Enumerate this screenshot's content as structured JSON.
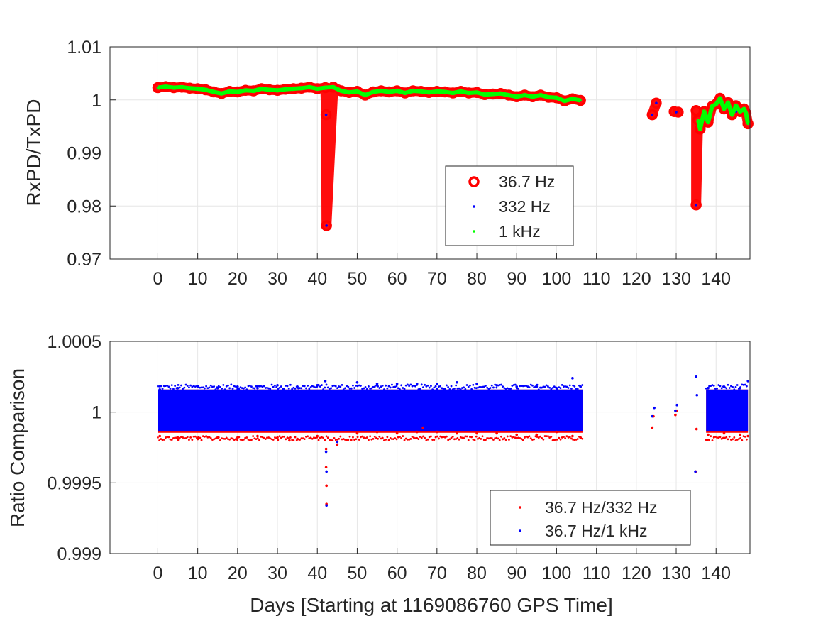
{
  "chart_data": [
    {
      "type": "scatter",
      "ylabel": "RxPD/TxPD",
      "xlabel": "",
      "xlim": [
        -12,
        148.5
      ],
      "ylim": [
        0.97,
        1.01
      ],
      "xticks": [
        "0",
        "10",
        "20",
        "30",
        "40",
        "50",
        "60",
        "70",
        "80",
        "90",
        "100",
        "110",
        "120",
        "130",
        "140"
      ],
      "yticks": [
        "0.97",
        "0.98",
        "0.99",
        "1",
        "1.01"
      ],
      "grid": true,
      "legend_position": "lower-center",
      "series": [
        {
          "name": "36.7 Hz",
          "marker": "open-circle",
          "color": "#ff0000",
          "x": [
            0,
            2,
            4,
            6,
            8,
            10,
            12,
            14,
            16,
            18,
            20,
            22,
            24,
            26,
            28,
            30,
            32,
            34,
            36,
            38,
            40,
            42,
            42.2,
            42.3,
            44,
            46,
            48,
            50,
            52,
            54,
            56,
            58,
            60,
            62,
            64,
            66,
            68,
            70,
            72,
            74,
            76,
            78,
            80,
            82,
            84,
            86,
            88,
            90,
            92,
            94,
            96,
            98,
            100,
            102,
            104,
            106,
            124,
            125,
            129.5,
            130.5,
            135,
            135,
            135.5,
            136,
            137,
            138,
            139,
            140,
            141,
            142,
            143,
            144,
            145,
            146,
            147,
            147.5,
            148
          ],
          "y": [
            1.0023,
            1.0025,
            1.0023,
            1.0024,
            1.0022,
            1.0021,
            1.0019,
            1.0015,
            1.0012,
            1.0016,
            1.0015,
            1.0018,
            1.0017,
            1.0021,
            1.0019,
            1.0018,
            1.002,
            1.0021,
            1.0022,
            1.0024,
            1.0021,
            1.0023,
            0.9972,
            0.9763,
            1.0024,
            1.0017,
            1.0014,
            1.0016,
            1.0009,
            1.0015,
            1.0017,
            1.0015,
            1.0017,
            1.0013,
            1.0017,
            1.0016,
            1.0014,
            1.0016,
            1.0015,
            1.0013,
            1.0016,
            1.0013,
            1.0014,
            1.001,
            1.0011,
            1.0012,
            1.0009,
            1.0006,
            1.0009,
            1.0006,
            1.0009,
            1.0005,
            1.0004,
            0.9998,
            1.0002,
            0.9999,
            0.9972,
            0.9994,
            0.9978,
            0.9977,
            0.998,
            0.9802,
            0.9962,
            0.9945,
            0.9978,
            0.9958,
            0.9988,
            0.9992,
            1.0003,
            0.9983,
            0.9995,
            0.9972,
            0.9989,
            0.9978,
            0.9983,
            0.9975,
            0.9955
          ]
        },
        {
          "name": "332 Hz",
          "marker": "dot",
          "color": "#0000ff",
          "x": [
            0,
            10,
            20,
            30,
            40,
            42.2,
            42.3,
            50,
            60,
            70,
            80,
            90,
            100,
            106,
            124,
            125,
            130,
            135,
            140,
            145,
            147.5
          ],
          "y": [
            1.0023,
            1.0021,
            1.0015,
            1.0018,
            1.0021,
            0.9972,
            0.9763,
            1.0016,
            1.0017,
            1.0016,
            1.0014,
            1.0006,
            1.0004,
            0.9999,
            0.9972,
            0.9994,
            0.9977,
            0.9802,
            0.9992,
            0.9978,
            0.9975
          ]
        },
        {
          "name": "1 kHz",
          "marker": "dot",
          "color": "#00ff00",
          "x": [
            0,
            2,
            4,
            6,
            8,
            10,
            12,
            14,
            16,
            18,
            20,
            22,
            24,
            26,
            28,
            30,
            32,
            34,
            36,
            38,
            40,
            42,
            44,
            46,
            48,
            50,
            52,
            54,
            56,
            58,
            60,
            62,
            64,
            66,
            68,
            70,
            72,
            74,
            76,
            78,
            80,
            82,
            84,
            86,
            88,
            90,
            92,
            94,
            96,
            98,
            100,
            102,
            104,
            106,
            135.5,
            136,
            137,
            138,
            139,
            140,
            141,
            142,
            143,
            144,
            145,
            146,
            147,
            147.5,
            148
          ],
          "y": [
            1.0023,
            1.0025,
            1.0023,
            1.0024,
            1.0022,
            1.0021,
            1.0019,
            1.0015,
            1.0012,
            1.0016,
            1.0015,
            1.0018,
            1.0017,
            1.0021,
            1.0019,
            1.0018,
            1.002,
            1.0021,
            1.0022,
            1.0024,
            1.0021,
            1.0023,
            1.0024,
            1.0017,
            1.0014,
            1.0016,
            1.0009,
            1.0015,
            1.0017,
            1.0015,
            1.0017,
            1.0013,
            1.0017,
            1.0016,
            1.0014,
            1.0016,
            1.0015,
            1.0013,
            1.0016,
            1.0013,
            1.0014,
            1.001,
            1.0011,
            1.0012,
            1.0009,
            1.0006,
            1.0009,
            1.0006,
            1.0009,
            1.0005,
            1.0004,
            0.9998,
            1.0002,
            0.9999,
            0.9962,
            0.9945,
            0.9978,
            0.9958,
            0.9988,
            0.9992,
            1.0003,
            0.9983,
            0.9995,
            0.9972,
            0.9989,
            0.9978,
            0.9983,
            0.9975,
            0.9955
          ]
        }
      ]
    },
    {
      "type": "scatter",
      "ylabel": "Ratio Comparison",
      "xlabel": "Days [Starting at 1169086760 GPS Time]",
      "xlim": [
        -12,
        148.5
      ],
      "ylim": [
        0.999,
        1.0005
      ],
      "xticks": [
        "0",
        "10",
        "20",
        "30",
        "40",
        "50",
        "60",
        "70",
        "80",
        "90",
        "100",
        "110",
        "120",
        "130",
        "140"
      ],
      "yticks": [
        "0.999",
        "0.9995",
        "1",
        "1.0005"
      ],
      "grid": true,
      "legend_position": "lower-right",
      "band": {
        "segments": [
          [
            0,
            106.5
          ],
          [
            137.5,
            148
          ]
        ],
        "min": 0.99982,
        "max": 1.00016
      },
      "series": [
        {
          "name": "36.7 Hz/332 Hz",
          "marker": "dot",
          "color": "#ff0000",
          "x": [
            0.5,
            5,
            10,
            15,
            20,
            25,
            30,
            33,
            35,
            40,
            42.2,
            42.2,
            42.3,
            42.3,
            45,
            50,
            55,
            60,
            65,
            66.5,
            70,
            75,
            80,
            85,
            90,
            95,
            100,
            104,
            106,
            124,
            124.3,
            129.8,
            130.2,
            134.9,
            135.1,
            138,
            142,
            146,
            148
          ],
          "y": [
            0.99983,
            0.99982,
            0.99981,
            0.99982,
            0.99982,
            0.99983,
            0.99982,
            0.9998,
            0.99981,
            0.99983,
            0.99974,
            0.99961,
            0.99948,
            0.99935,
            0.99977,
            0.99985,
            0.99986,
            0.99985,
            0.99986,
            0.99989,
            0.99986,
            0.99985,
            0.99985,
            0.99985,
            0.99984,
            0.99984,
            0.99986,
            0.99983,
            0.99982,
            0.99989,
            0.99997,
            0.99998,
            1.00001,
            0.99958,
            0.99988,
            0.99984,
            0.99985,
            0.99984,
            0.99983
          ]
        },
        {
          "name": "36.7 Hz/1 kHz",
          "marker": "dot",
          "color": "#0000ff",
          "x": [
            0.5,
            5,
            10,
            15,
            20,
            25,
            30,
            35,
            40,
            42,
            42.2,
            42.3,
            42.3,
            45,
            50,
            55,
            60,
            65,
            70,
            75,
            80,
            85,
            90,
            95,
            100,
            104,
            106,
            124,
            124.5,
            129.8,
            130.2,
            134.8,
            135,
            135.2,
            138,
            142,
            146,
            148
          ],
          "y": [
            1.00016,
            1.00017,
            1.00018,
            1.00017,
            1.00018,
            1.00017,
            1.00019,
            1.00018,
            1.00019,
            1.00022,
            0.99972,
            0.99958,
            0.99934,
            0.99979,
            1.00021,
            1.0002,
            1.0002,
            1.0002,
            1.0002,
            1.00021,
            1.0002,
            1.00019,
            1.00018,
            1.00018,
            1.00017,
            1.00024,
            1.00018,
            0.99997,
            1.00003,
            1.00001,
            1.00005,
            0.99958,
            1.00025,
            1.00012,
            1.00017,
            1.00018,
            1.00017,
            1.00022
          ]
        }
      ]
    }
  ]
}
